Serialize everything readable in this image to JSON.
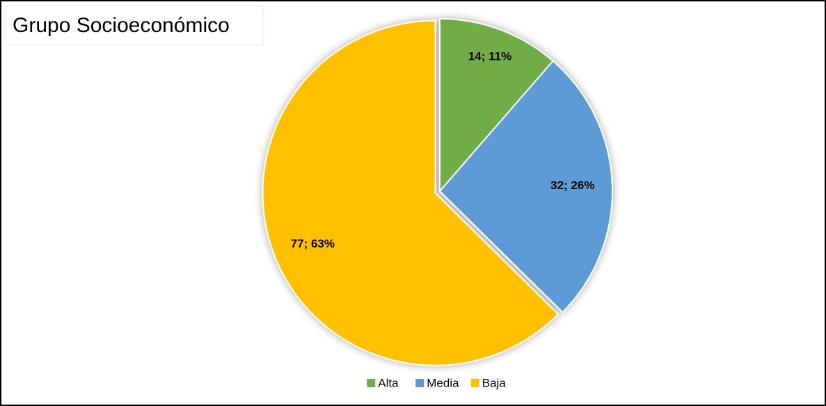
{
  "chart_data": {
    "type": "pie",
    "title": "Grupo Socioeconómico",
    "categories": [
      "Alta",
      "Media",
      "Baja"
    ],
    "values": [
      14,
      32,
      77
    ],
    "value_labels": [
      "14; 11%",
      "32; 26%",
      "77; 63%"
    ],
    "colors": [
      "#70ad47",
      "#5b9bd5",
      "#ffc000"
    ],
    "legend": "bottom"
  }
}
